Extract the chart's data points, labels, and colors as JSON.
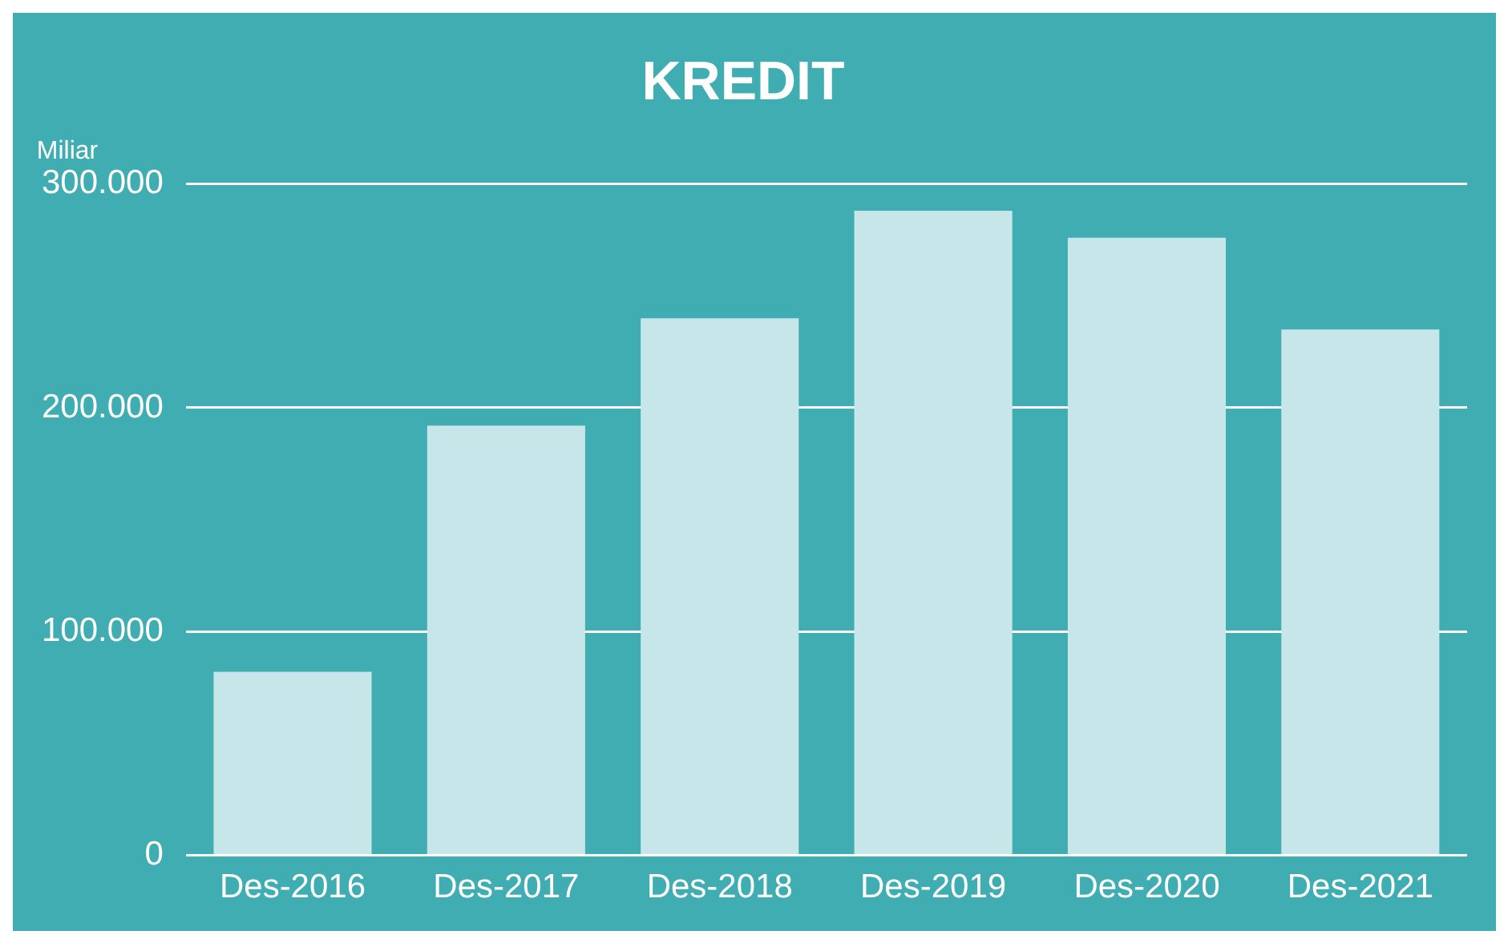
{
  "chart_data": {
    "type": "bar",
    "title": "KREDIT",
    "ylabel": "Miliar",
    "categories": [
      "Des-2016",
      "Des-2017",
      "Des-2018",
      "Des-2019",
      "Des-2020",
      "Des-2021"
    ],
    "values": [
      82000,
      192000,
      240000,
      288000,
      276000,
      235000
    ],
    "color": "#c6e6e9",
    "ylim": [
      0,
      300000
    ],
    "yticks": [
      {
        "value": 0,
        "label": "0"
      },
      {
        "value": 100000,
        "label": "100.000"
      },
      {
        "value": 200000,
        "label": "200.000"
      },
      {
        "value": 300000,
        "label": "300.000"
      }
    ],
    "grid": "y"
  }
}
